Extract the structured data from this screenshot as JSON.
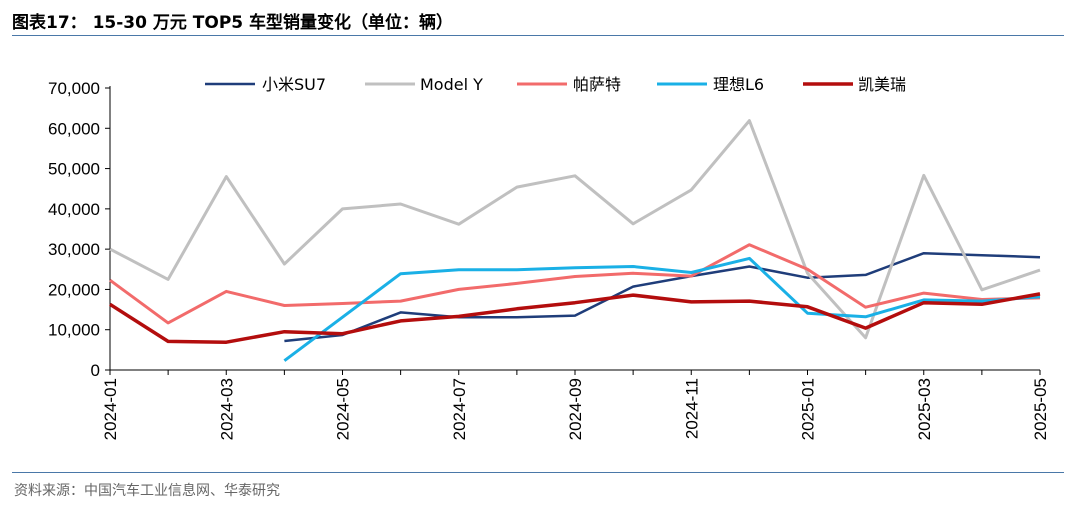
{
  "title": "图表17： 15-30 万元 TOP5 车型销量变化（单位：辆）",
  "source": "资料来源：中国汽车工业信息网、华泰研究",
  "chart_data": {
    "type": "line",
    "x": [
      "2024-01",
      "2024-02",
      "2024-03",
      "2024-04",
      "2024-05",
      "2024-06",
      "2024-07",
      "2024-08",
      "2024-09",
      "2024-10",
      "2024-11",
      "2024-12",
      "2025-01",
      "2025-02",
      "2025-03",
      "2025-04",
      "2025-05"
    ],
    "x_tick_labels": [
      "2024-01",
      "2024-03",
      "2024-05",
      "2024-07",
      "2024-09",
      "2024-11",
      "2025-01",
      "2025-03",
      "2025-05"
    ],
    "ylim": [
      0,
      70000
    ],
    "y_ticks": [
      0,
      10000,
      20000,
      30000,
      40000,
      50000,
      60000,
      70000
    ],
    "y_tick_labels": [
      "0",
      "10,000",
      "20,000",
      "30,000",
      "40,000",
      "50,000",
      "60,000",
      "70,000"
    ],
    "grid": false,
    "legend_position": "top",
    "series": [
      {
        "name": "小米SU7",
        "color": "#1f3d7a",
        "width": 2.5,
        "values": [
          null,
          null,
          null,
          7200,
          8700,
          14300,
          13100,
          13100,
          13500,
          20700,
          23300,
          25700,
          22900,
          23600,
          29000,
          28500,
          28000
        ]
      },
      {
        "name": "Model Y",
        "color": "#c0c0c0",
        "width": 3,
        "values": [
          30000,
          22500,
          48000,
          26300,
          40000,
          41200,
          36200,
          45400,
          48200,
          36300,
          44700,
          61900,
          24000,
          8000,
          48300,
          19900,
          24800
        ]
      },
      {
        "name": "帕萨特",
        "color": "#f26b6b",
        "width": 3,
        "values": [
          22300,
          11700,
          19500,
          16000,
          16500,
          17100,
          20000,
          21500,
          23200,
          24000,
          23300,
          31100,
          25000,
          15600,
          19100,
          17500,
          17900
        ]
      },
      {
        "name": "理想L6",
        "color": "#1ab0e6",
        "width": 3,
        "values": [
          null,
          null,
          null,
          2300,
          13100,
          23900,
          24900,
          24900,
          25400,
          25700,
          24200,
          27700,
          14100,
          13200,
          17400,
          17100,
          18200
        ]
      },
      {
        "name": "凯美瑞",
        "color": "#b30d0d",
        "width": 3.5,
        "values": [
          16300,
          7100,
          6900,
          9500,
          9000,
          12200,
          13300,
          15200,
          16700,
          18600,
          16900,
          17100,
          15700,
          10400,
          16700,
          16300,
          18900
        ]
      }
    ]
  }
}
